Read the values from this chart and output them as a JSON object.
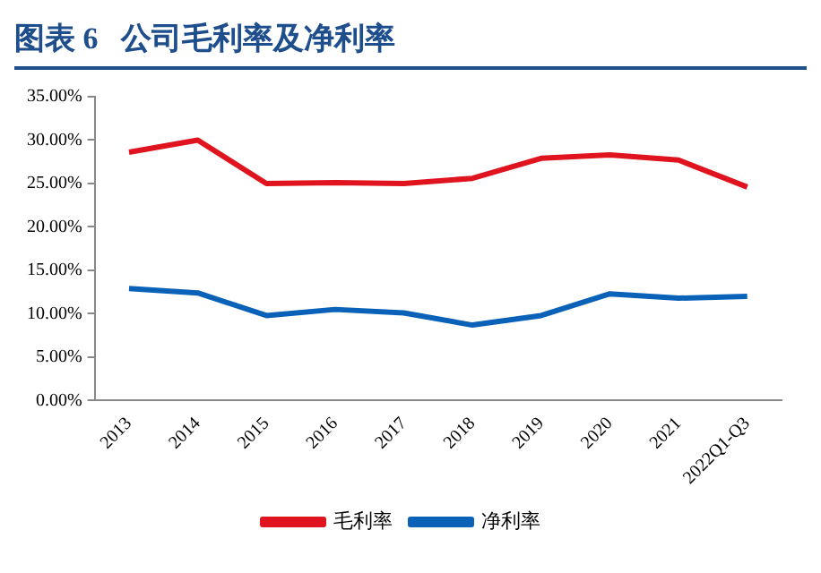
{
  "chart_data": {
    "type": "line",
    "title": "图表 6   公司毛利率及净利率",
    "categories": [
      "2013",
      "2014",
      "2015",
      "2016",
      "2017",
      "2018",
      "2019",
      "2020",
      "2021",
      "2022Q1-Q3"
    ],
    "series": [
      {
        "name": "毛利率",
        "color": "#e0141e",
        "values": [
          28.6,
          30.0,
          25.0,
          25.1,
          25.0,
          25.6,
          27.9,
          28.3,
          27.7,
          24.6
        ]
      },
      {
        "name": "净利率",
        "color": "#0a62b8",
        "values": [
          12.9,
          12.4,
          9.8,
          10.5,
          10.1,
          8.7,
          9.8,
          12.3,
          11.8,
          12.0
        ]
      }
    ],
    "ylim": [
      0,
      35
    ],
    "yticks": [
      {
        "value": 0,
        "label": "0.00%"
      },
      {
        "value": 5,
        "label": "5.00%"
      },
      {
        "value": 10,
        "label": "10.00%"
      },
      {
        "value": 15,
        "label": "15.00%"
      },
      {
        "value": 20,
        "label": "20.00%"
      },
      {
        "value": 25,
        "label": "25.00%"
      },
      {
        "value": 30,
        "label": "30.00%"
      },
      {
        "value": 35,
        "label": "35.00%"
      }
    ],
    "grid": false,
    "legend": "bottom",
    "marker": "none",
    "line_style": "solid"
  }
}
